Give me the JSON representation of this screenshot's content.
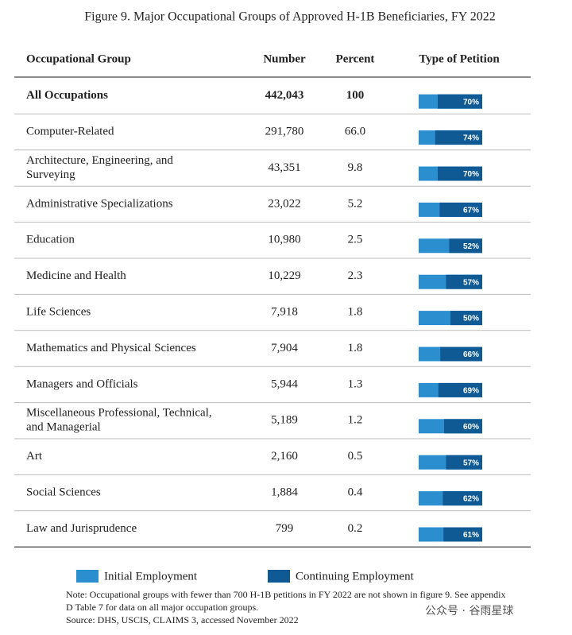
{
  "title": "Figure 9. Major Occupational Groups of Approved H-1B Beneficiaries, FY 2022",
  "table": {
    "header": [
      "Occupational Group",
      "Number",
      "Percent",
      "Type of Petition"
    ],
    "rows": [
      {
        "group": [
          "All Occupations"
        ],
        "number": "442,043",
        "percent": "100",
        "continuing": 70,
        "continuing_label": "70%"
      },
      {
        "group": [
          "Computer-Related"
        ],
        "number": "291,780",
        "percent": "66.0",
        "continuing": 74,
        "continuing_label": "74%"
      },
      {
        "group": [
          "Architecture, Engineering, and",
          "Surveying"
        ],
        "number": "43,351",
        "percent": "9.8",
        "continuing": 70,
        "continuing_label": "70%"
      },
      {
        "group": [
          "Administrative Specializations"
        ],
        "number": "23,022",
        "percent": "5.2",
        "continuing": 67,
        "continuing_label": "67%"
      },
      {
        "group": [
          "Education"
        ],
        "number": "10,980",
        "percent": "2.5",
        "continuing": 52,
        "continuing_label": "52%"
      },
      {
        "group": [
          "Medicine and Health"
        ],
        "number": "10,229",
        "percent": "2.3",
        "continuing": 57,
        "continuing_label": "57%"
      },
      {
        "group": [
          "Life Sciences"
        ],
        "number": "7,918",
        "percent": "1.8",
        "continuing": 50,
        "continuing_label": "50%"
      },
      {
        "group": [
          "Mathematics and Physical Sciences"
        ],
        "number": "7,904",
        "percent": "1.8",
        "continuing": 66,
        "continuing_label": "66%"
      },
      {
        "group": [
          "Managers and Officials"
        ],
        "number": "5,944",
        "percent": "1.3",
        "continuing": 69,
        "continuing_label": "69%"
      },
      {
        "group": [
          "Miscellaneous Professional, Technical,",
          "and Managerial"
        ],
        "number": "5,189",
        "percent": "1.2",
        "continuing": 60,
        "continuing_label": "60%"
      },
      {
        "group": [
          "Art"
        ],
        "number": "2,160",
        "percent": "0.5",
        "continuing": 57,
        "continuing_label": "57%"
      },
      {
        "group": [
          "Social Sciences"
        ],
        "number": "1,884",
        "percent": "0.4",
        "continuing": 62,
        "continuing_label": "62%"
      },
      {
        "group": [
          "Law and Jurisprudence"
        ],
        "number": "799",
        "percent": "0.2",
        "continuing": 61,
        "continuing_label": "61%"
      }
    ]
  },
  "legend": [
    {
      "name": "Initial Employment",
      "color": "#2b8fcf"
    },
    {
      "name": "Continuing Employment",
      "color": "#0f5a94"
    }
  ],
  "note": [
    "Note: Occupational groups with fewer than 700 H-1B petitions in FY 2022 are not shown in figure 9.  See appendix",
    "D Table 7 for data on all major occupation groups."
  ],
  "source": "Source: DHS, USCIS, CLAIMS 3, accessed November 2022",
  "watermark": "公众号 · 谷雨星球"
}
